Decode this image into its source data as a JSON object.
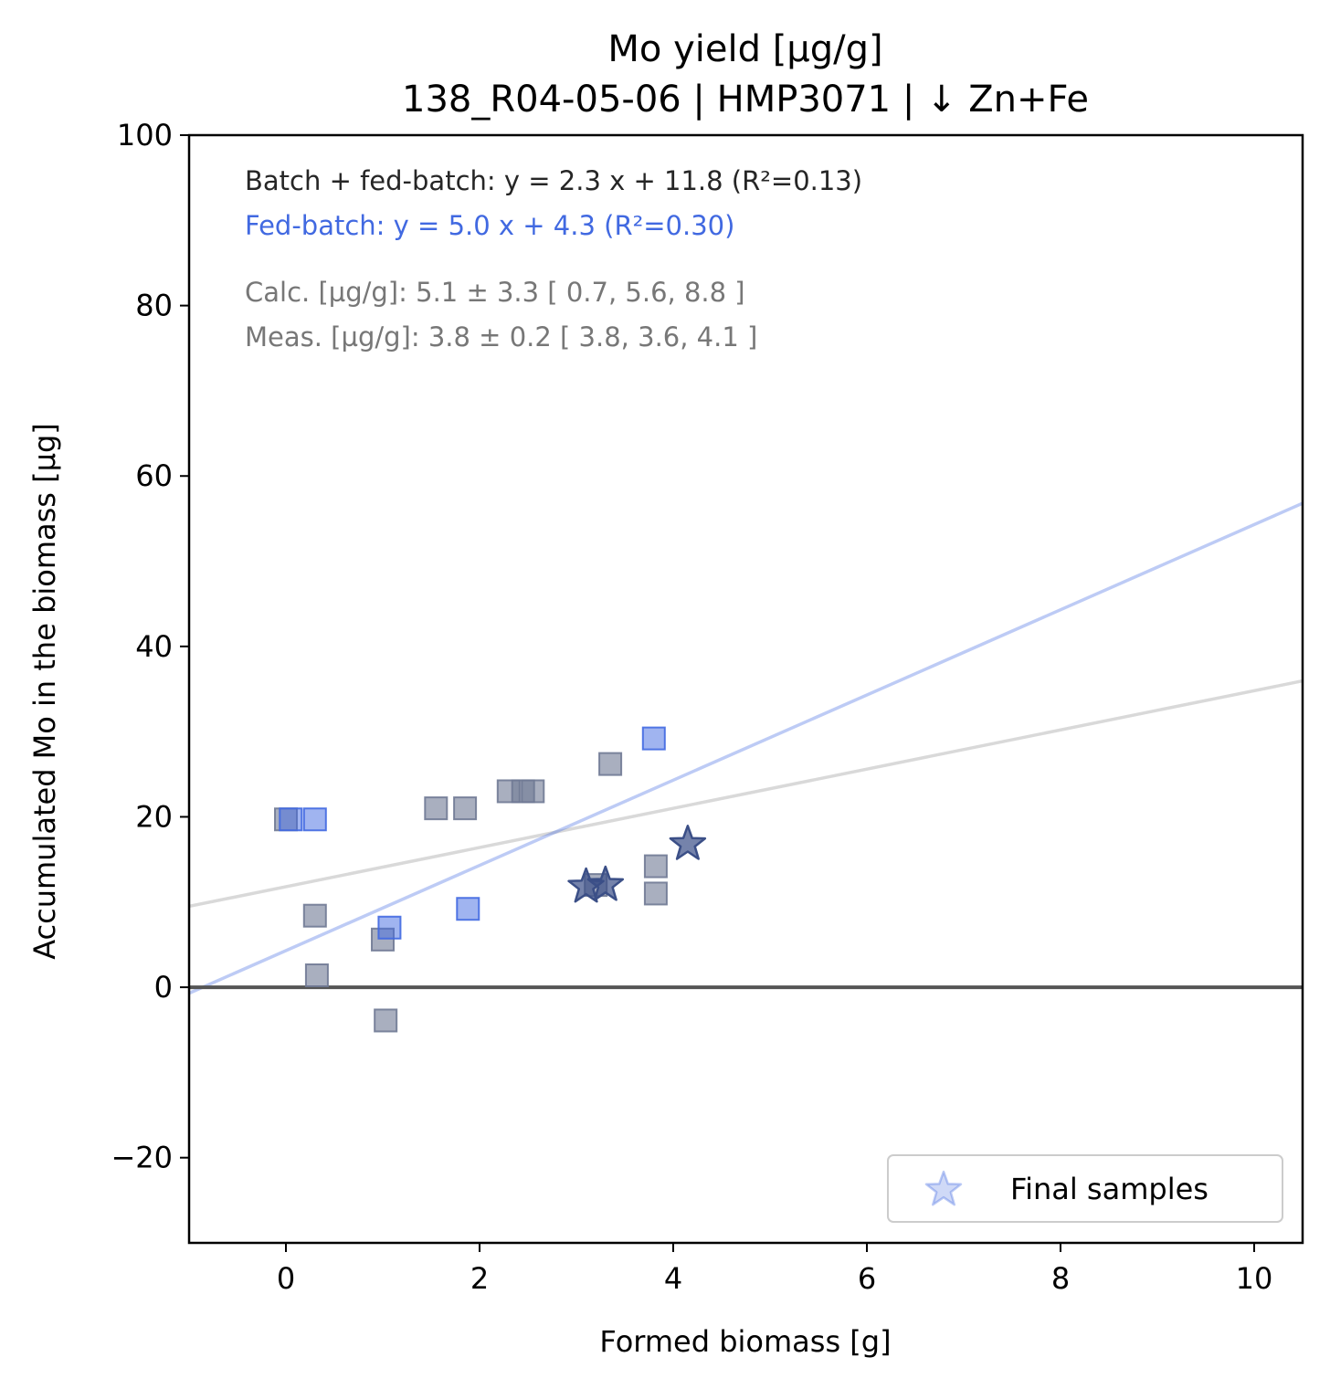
{
  "chart_data": {
    "type": "scatter",
    "title": "Mo yield [µg/g]",
    "subtitle": "138_R04-05-06  |  HMP3071  |  ↓ Zn+Fe",
    "xlabel": "Formed biomass [g]",
    "ylabel": "Accumulated Mo in the biomass [µg]",
    "xlim": [
      -1,
      10.5
    ],
    "ylim": [
      -30,
      100
    ],
    "xticks": [
      0,
      2,
      4,
      6,
      8,
      10
    ],
    "xtick_labels": [
      "0",
      "2",
      "4",
      "6",
      "8",
      "10"
    ],
    "yticks": [
      -20,
      0,
      20,
      40,
      60,
      80,
      100
    ],
    "ytick_labels": [
      "−20",
      "0",
      "20",
      "40",
      "60",
      "80",
      "100"
    ],
    "grid": false,
    "legend": {
      "position": "lower-right",
      "entries": [
        "Final samples"
      ]
    },
    "annotations": [
      {
        "text": "Batch + fed-batch: y = 2.3 x + 11.8 (R²=0.13)",
        "color": "#262626"
      },
      {
        "text": "Fed-batch: y = 5.0 x + 4.3 (R²=0.30)",
        "color": "#4169e1"
      },
      {
        "text": "Calc. [µg/g]: 5.1 ± 3.3 [ 0.7, 5.6, 8.8 ]",
        "color": "#777777"
      },
      {
        "text": "Meas. [µg/g]: 3.8 ± 0.2 [ 3.8, 3.6, 4.1 ]",
        "color": "#777777"
      }
    ],
    "reference_line": {
      "y": 0,
      "color": "#555555"
    },
    "fit_lines": [
      {
        "slope": 2.3,
        "intercept": 11.8,
        "color": "#d9d9d9"
      },
      {
        "slope": 5.0,
        "intercept": 4.3,
        "color": "#4169e1"
      }
    ],
    "series": [
      {
        "marker": "square",
        "color": "#707a95",
        "x": [
          0.0,
          0.3,
          0.32,
          1.0,
          1.03,
          1.55,
          1.85,
          2.3,
          2.45,
          2.55,
          3.35,
          3.82,
          3.82,
          3.2
        ],
        "y": [
          19.7,
          8.4,
          1.4,
          5.6,
          -3.9,
          21.0,
          21.0,
          23.0,
          23.0,
          23.0,
          26.2,
          14.2,
          11.0,
          12.0
        ]
      },
      {
        "marker": "square",
        "color": "#4169e1",
        "x": [
          0.05,
          0.3,
          1.07,
          1.88,
          3.8
        ],
        "y": [
          19.7,
          19.7,
          7.0,
          9.2,
          29.2
        ]
      },
      {
        "name": "Final samples",
        "marker": "star",
        "color": "#3b4f87",
        "x": [
          3.1,
          3.3,
          4.15
        ],
        "y": [
          11.8,
          12.0,
          16.8
        ]
      }
    ]
  }
}
